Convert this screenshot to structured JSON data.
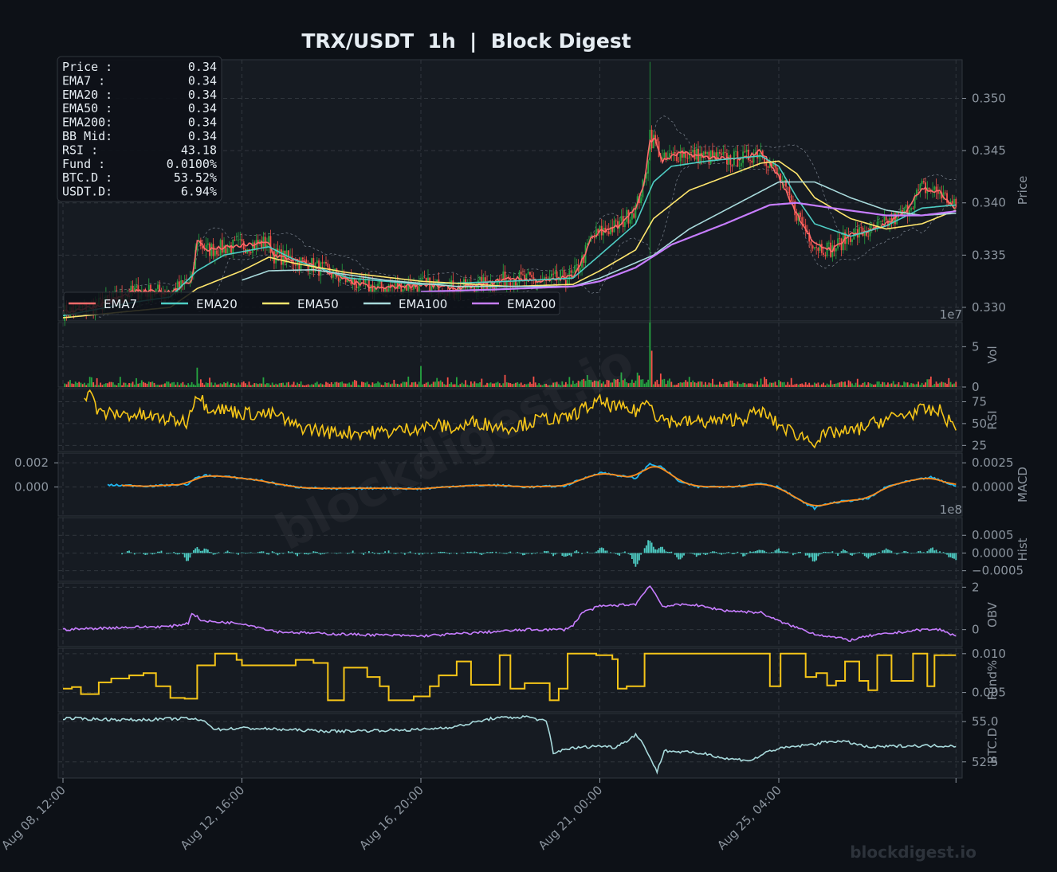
{
  "title": "TRX/USDT  1h  |  Block Digest",
  "watermark": "blockdigest.io",
  "footer_brand": "blockdigest.io",
  "colors": {
    "background": "#0d1117",
    "panel": "#161b22",
    "grid": "#30363d",
    "bull": "#26a641",
    "bear": "#f85149",
    "ema7": "#ff6b6b",
    "ema20": "#4ecdc4",
    "ema50": "#ffe66d",
    "ema100": "#a8dadc",
    "ema200": "#c77dff",
    "rsi": "#f5c518",
    "macd": "#1fb6f0",
    "signal": "#ff8c1a",
    "hist": "#4ecdc4",
    "obv": "#c77dff",
    "funding": "#f5c518",
    "btcd": "#a8dadc"
  },
  "info_box": [
    {
      "label": "Price :",
      "value": "0.34"
    },
    {
      "label": "EMA7  :",
      "value": "0.34"
    },
    {
      "label": "EMA20 :",
      "value": "0.34"
    },
    {
      "label": "EMA50 :",
      "value": "0.34"
    },
    {
      "label": "EMA200:",
      "value": "0.34"
    },
    {
      "label": "BB Mid:",
      "value": "0.34"
    },
    {
      "label": "RSI   :",
      "value": "43.18"
    },
    {
      "label": "Fund  :",
      "value": "0.0100%"
    },
    {
      "label": "BTC.D :",
      "value": "53.52%"
    },
    {
      "label": "USDT.D:",
      "value": "6.94%"
    }
  ],
  "chart_data": {
    "type": "line",
    "x_ticks": [
      "Aug 08, 12:00",
      "Aug 12, 16:00",
      "Aug 16, 20:00",
      "Aug 21, 00:00",
      "Aug 25, 04:00"
    ],
    "bars_per_tick": 100,
    "total_bars": 500,
    "legend": [
      "EMA7",
      "EMA20",
      "EMA50",
      "EMA100",
      "EMA200"
    ],
    "legend_position": "lower-left",
    "grid": true,
    "panels": [
      {
        "name": "price",
        "ylabel": "Price",
        "ylim": [
          0.3287,
          0.3537
        ],
        "ticks": [
          {
            "v": 0.33,
            "l": "0.330"
          },
          {
            "v": 0.335,
            "l": "0.335"
          },
          {
            "v": 0.34,
            "l": "0.340"
          },
          {
            "v": 0.345,
            "l": "0.345"
          },
          {
            "v": 0.35,
            "l": "0.350"
          }
        ],
        "series": [
          {
            "name": "EMA7",
            "color": "#ff6b6b",
            "anchors": [
              [
                0,
                0.3295
              ],
              [
                20,
                0.3302
              ],
              [
                40,
                0.3315
              ],
              [
                60,
                0.3315
              ],
              [
                72,
                0.3325
              ],
              [
                75,
                0.3365
              ],
              [
                80,
                0.3355
              ],
              [
                90,
                0.3357
              ],
              [
                115,
                0.3362
              ],
              [
                118,
                0.335
              ],
              [
                125,
                0.3347
              ],
              [
                140,
                0.334
              ],
              [
                160,
                0.3325
              ],
              [
                175,
                0.3318
              ],
              [
                200,
                0.3322
              ],
              [
                220,
                0.3318
              ],
              [
                235,
                0.3322
              ],
              [
                250,
                0.3328
              ],
              [
                270,
                0.3325
              ],
              [
                285,
                0.333
              ],
              [
                290,
                0.3345
              ],
              [
                295,
                0.3365
              ],
              [
                300,
                0.3372
              ],
              [
                310,
                0.3378
              ],
              [
                320,
                0.3395
              ],
              [
                325,
                0.342
              ],
              [
                328,
                0.346
              ],
              [
                331,
                0.346
              ],
              [
                335,
                0.344
              ],
              [
                345,
                0.3448
              ],
              [
                355,
                0.3445
              ],
              [
                370,
                0.3442
              ],
              [
                380,
                0.3442
              ],
              [
                390,
                0.345
              ],
              [
                400,
                0.3425
              ],
              [
                410,
                0.339
              ],
              [
                420,
                0.336
              ],
              [
                430,
                0.3355
              ],
              [
                440,
                0.337
              ],
              [
                450,
                0.3372
              ],
              [
                460,
                0.338
              ],
              [
                470,
                0.339
              ],
              [
                480,
                0.3415
              ],
              [
                490,
                0.341
              ],
              [
                499,
                0.3395
              ]
            ]
          },
          {
            "name": "EMA20",
            "color": "#4ecdc4",
            "anchors": [
              [
                0,
                0.3292
              ],
              [
                40,
                0.3305
              ],
              [
                60,
                0.331
              ],
              [
                75,
                0.3335
              ],
              [
                90,
                0.335
              ],
              [
                115,
                0.3358
              ],
              [
                130,
                0.3345
              ],
              [
                160,
                0.3328
              ],
              [
                200,
                0.3322
              ],
              [
                250,
                0.3325
              ],
              [
                285,
                0.3328
              ],
              [
                300,
                0.335
              ],
              [
                310,
                0.3365
              ],
              [
                320,
                0.338
              ],
              [
                330,
                0.342
              ],
              [
                340,
                0.3435
              ],
              [
                360,
                0.344
              ],
              [
                390,
                0.3445
              ],
              [
                400,
                0.3435
              ],
              [
                410,
                0.3405
              ],
              [
                420,
                0.338
              ],
              [
                440,
                0.3368
              ],
              [
                460,
                0.3378
              ],
              [
                480,
                0.3395
              ],
              [
                499,
                0.3398
              ]
            ]
          },
          {
            "name": "EMA50",
            "color": "#ffe66d",
            "anchors": [
              [
                0,
                0.329
              ],
              [
                60,
                0.33
              ],
              [
                75,
                0.3318
              ],
              [
                100,
                0.3335
              ],
              [
                115,
                0.3348
              ],
              [
                130,
                0.3342
              ],
              [
                160,
                0.3333
              ],
              [
                200,
                0.3325
              ],
              [
                250,
                0.332
              ],
              [
                285,
                0.3322
              ],
              [
                300,
                0.3335
              ],
              [
                320,
                0.3355
              ],
              [
                330,
                0.3385
              ],
              [
                350,
                0.3412
              ],
              [
                370,
                0.3425
              ],
              [
                390,
                0.3438
              ],
              [
                400,
                0.344
              ],
              [
                410,
                0.3428
              ],
              [
                420,
                0.3405
              ],
              [
                440,
                0.3385
              ],
              [
                460,
                0.3375
              ],
              [
                480,
                0.338
              ],
              [
                499,
                0.3393
              ]
            ]
          },
          {
            "name": "EMA100",
            "color": "#a8dadc",
            "anchors": [
              [
                100,
                0.3326
              ],
              [
                115,
                0.3335
              ],
              [
                140,
                0.3336
              ],
              [
                180,
                0.3326
              ],
              [
                220,
                0.332
              ],
              [
                260,
                0.332
              ],
              [
                285,
                0.332
              ],
              [
                300,
                0.3328
              ],
              [
                330,
                0.335
              ],
              [
                350,
                0.3375
              ],
              [
                380,
                0.3402
              ],
              [
                400,
                0.342
              ],
              [
                420,
                0.342
              ],
              [
                440,
                0.3405
              ],
              [
                460,
                0.3393
              ],
              [
                480,
                0.3388
              ],
              [
                499,
                0.339
              ]
            ]
          },
          {
            "name": "EMA200",
            "color": "#c77dff",
            "anchors": [
              [
                200,
                0.3315
              ],
              [
                240,
                0.3317
              ],
              [
                285,
                0.332
              ],
              [
                300,
                0.3325
              ],
              [
                320,
                0.3338
              ],
              [
                340,
                0.336
              ],
              [
                370,
                0.338
              ],
              [
                395,
                0.3398
              ],
              [
                410,
                0.34
              ],
              [
                430,
                0.3395
              ],
              [
                460,
                0.3388
              ],
              [
                480,
                0.3388
              ],
              [
                499,
                0.3392
              ]
            ]
          }
        ]
      },
      {
        "name": "volume",
        "ylabel": "Vol",
        "ylim": [
          0,
          80000000
        ],
        "ticks": [
          {
            "v": 0,
            "l": "0"
          },
          {
            "v": 50000000,
            "l": "5"
          }
        ],
        "offset_label": "1e7"
      },
      {
        "name": "rsi",
        "ylabel": "RSI",
        "ylim": [
          18,
          90
        ],
        "ticks": [
          {
            "v": 25,
            "l": "25"
          },
          {
            "v": 50,
            "l": "50"
          },
          {
            "v": 75,
            "l": "75"
          }
        ]
      },
      {
        "name": "macd",
        "ylabel": "MACD",
        "ylim": [
          -0.003,
          0.0035
        ],
        "ticks": [
          {
            "v": 0,
            "l": "0.0000"
          },
          {
            "v": 0.0025,
            "l": "0.0025"
          }
        ],
        "left_ticks": [
          {
            "v": 0,
            "l": "0.000"
          },
          {
            "v": 0.0025,
            "l": "0.002"
          }
        ]
      },
      {
        "name": "hist",
        "ylabel": "Hist",
        "ylim": [
          -0.0008,
          0.001
        ],
        "ticks": [
          {
            "v": -0.0005,
            "l": "−0.0005"
          },
          {
            "v": 0,
            "l": "0.0000"
          },
          {
            "v": 0.0005,
            "l": "0.0005"
          }
        ],
        "offset_label": "1e8"
      },
      {
        "name": "obv",
        "ylabel": "OBV",
        "ylim": [
          -0.8,
          2.2
        ],
        "ticks": [
          {
            "v": 0,
            "l": "0"
          },
          {
            "v": 2,
            "l": "2"
          }
        ]
      },
      {
        "name": "funding",
        "ylabel": "Fund%",
        "ylim": [
          0.0025,
          0.0107
        ],
        "ticks": [
          {
            "v": 0.005,
            "l": "0.005"
          },
          {
            "v": 0.01,
            "l": "0.010"
          }
        ]
      },
      {
        "name": "btcd",
        "ylabel": "BTC.D",
        "ylim": [
          51.5,
          55.5
        ],
        "ticks": [
          {
            "v": 52.5,
            "l": "52.5"
          },
          {
            "v": 55.0,
            "l": "55.0"
          }
        ]
      }
    ]
  }
}
